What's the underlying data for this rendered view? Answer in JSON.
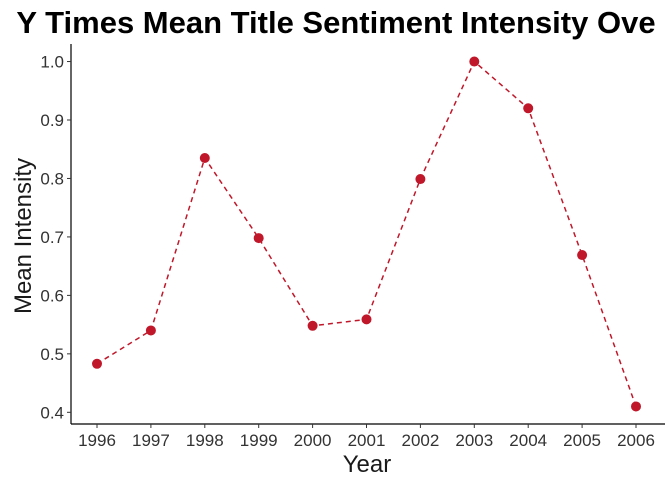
{
  "chart_data": {
    "type": "line",
    "title": "Y Times Mean Title Sentiment Intensity Ove",
    "xlabel": "Year",
    "ylabel": "Mean Intensity",
    "x": [
      "1996",
      "1997",
      "1998",
      "1999",
      "2000",
      "2001",
      "2002",
      "2003",
      "2004",
      "2005",
      "2006"
    ],
    "series": [
      {
        "values": [
          0.483,
          0.54,
          0.835,
          0.698,
          0.548,
          0.559,
          0.799,
          1.0,
          0.92,
          0.669,
          0.41
        ]
      }
    ],
    "ylim": [
      0.38,
      1.03
    ],
    "yticks": [
      "0.4",
      "0.5",
      "0.6",
      "0.7",
      "0.8",
      "0.9",
      "1.0"
    ],
    "line_style": "dashed",
    "marker": "circle",
    "color": "#c0182a",
    "grid": false,
    "legend": "none"
  }
}
